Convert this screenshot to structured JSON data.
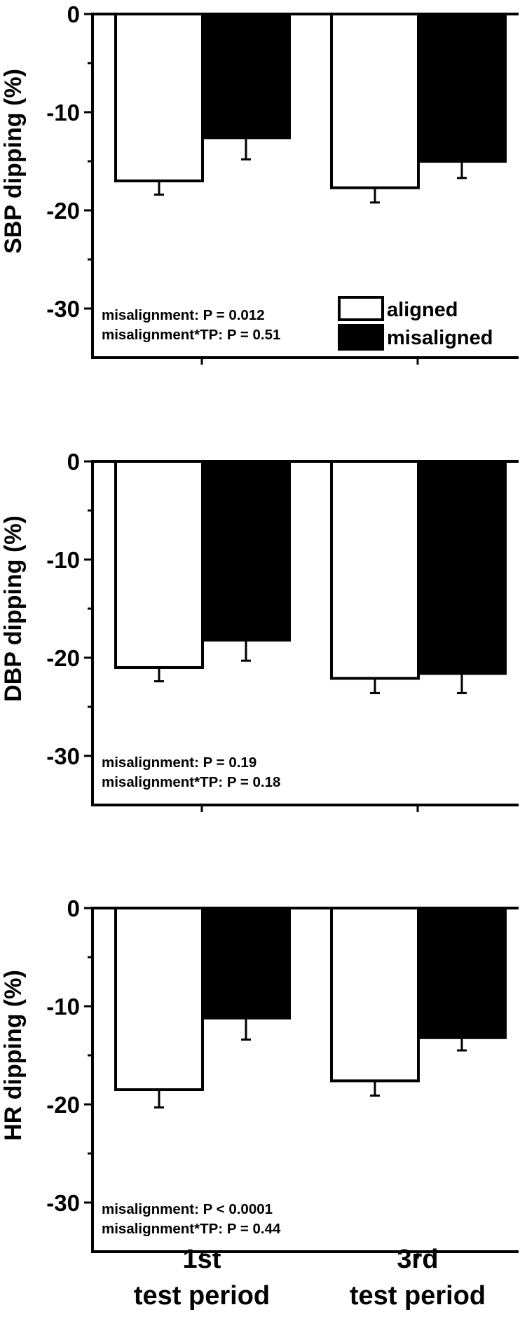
{
  "chart_data": [
    {
      "type": "bar",
      "ylabel": "SBP dipping (%)",
      "ylim": [
        -35,
        0
      ],
      "yticks": [
        0,
        -10,
        -20,
        -30
      ],
      "categories": [
        "1st test period",
        "3rd test period"
      ],
      "series": [
        {
          "name": "aligned",
          "color": "#ffffff",
          "values": [
            -17.0,
            -17.7
          ],
          "errors": [
            1.4,
            1.5
          ]
        },
        {
          "name": "misaligned",
          "color": "#000000",
          "values": [
            -12.6,
            -15.0
          ],
          "errors": [
            2.2,
            1.7
          ]
        }
      ],
      "annotations": [
        "misalignment: P = 0.012",
        "misalignment*TP: P = 0.51"
      ],
      "legend": "bottom-right"
    },
    {
      "type": "bar",
      "ylabel": "DBP dipping (%)",
      "ylim": [
        -35,
        0
      ],
      "yticks": [
        0,
        -10,
        -20,
        -30
      ],
      "categories": [
        "1st test period",
        "3rd test period"
      ],
      "series": [
        {
          "name": "aligned",
          "color": "#ffffff",
          "values": [
            -21.0,
            -22.1
          ],
          "errors": [
            1.4,
            1.5
          ]
        },
        {
          "name": "misaligned",
          "color": "#000000",
          "values": [
            -18.2,
            -21.6
          ],
          "errors": [
            2.1,
            2.0
          ]
        }
      ],
      "annotations": [
        "misalignment: P = 0.19",
        "misalignment*TP: P = 0.18"
      ]
    },
    {
      "type": "bar",
      "ylabel": "HR dipping (%)",
      "ylim": [
        -35,
        0
      ],
      "yticks": [
        0,
        -10,
        -20,
        -30
      ],
      "categories": [
        "1st test period",
        "3rd test period"
      ],
      "series": [
        {
          "name": "aligned",
          "color": "#ffffff",
          "values": [
            -18.5,
            -17.6
          ],
          "errors": [
            1.8,
            1.5
          ]
        },
        {
          "name": "misaligned",
          "color": "#000000",
          "values": [
            -11.2,
            -13.2
          ],
          "errors": [
            2.2,
            1.3
          ]
        }
      ],
      "annotations": [
        "misalignment: P < 0.0001",
        "misalignment*TP: P = 0.44"
      ]
    }
  ],
  "x_tick_labels": [
    {
      "line1": "1st",
      "line2": "test period"
    },
    {
      "line1": "3rd",
      "line2": "test period"
    }
  ],
  "legend": {
    "items": [
      {
        "label": "aligned",
        "color": "#ffffff"
      },
      {
        "label": "misaligned",
        "color": "#000000"
      }
    ]
  }
}
